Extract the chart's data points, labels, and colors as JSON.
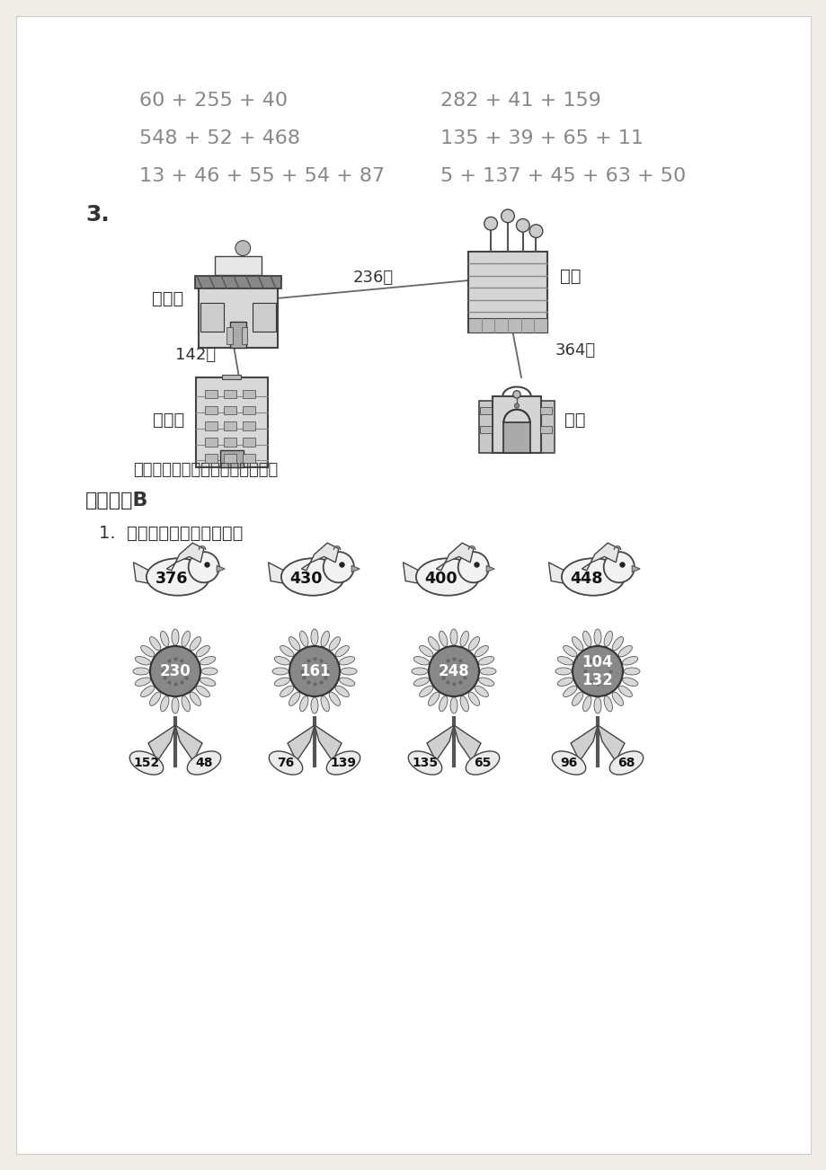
{
  "bg_color": "#f0ede8",
  "page_bg": "#ffffff",
  "equations_left": [
    "60 + 255 + 40",
    "548 + 52 + 468",
    "13 + 46 + 55 + 54 + 87"
  ],
  "equations_right": [
    "282 + 41 + 159",
    "135 + 39 + 65 + 11",
    "5 + 137 + 45 + 63 + 50"
  ],
  "section3_label": "3.",
  "map_question": "小民从家去学校一共要走多少米？",
  "section_b_title": "课堂检测B",
  "section1_label": "1.  快速算一算，并连一连。",
  "bird_numbers": [
    "376",
    "430",
    "400",
    "448"
  ],
  "flower_centers": [
    "230",
    "161",
    "248",
    "104\n132"
  ],
  "flower_left_leaves": [
    "152",
    "76",
    "135",
    "96"
  ],
  "flower_right_leaves": [
    "48",
    "139",
    "65",
    "68"
  ],
  "building_label_cake": "蛋糕房",
  "building_label_mall": "商场",
  "building_label_home": "小民家",
  "building_label_school": "学校",
  "dist_cake_mall": "236米",
  "dist_cake_home": "142米",
  "dist_mall_school": "364米",
  "text_color": "#555555",
  "dark_color": "#333333",
  "eq_color": "#888888"
}
